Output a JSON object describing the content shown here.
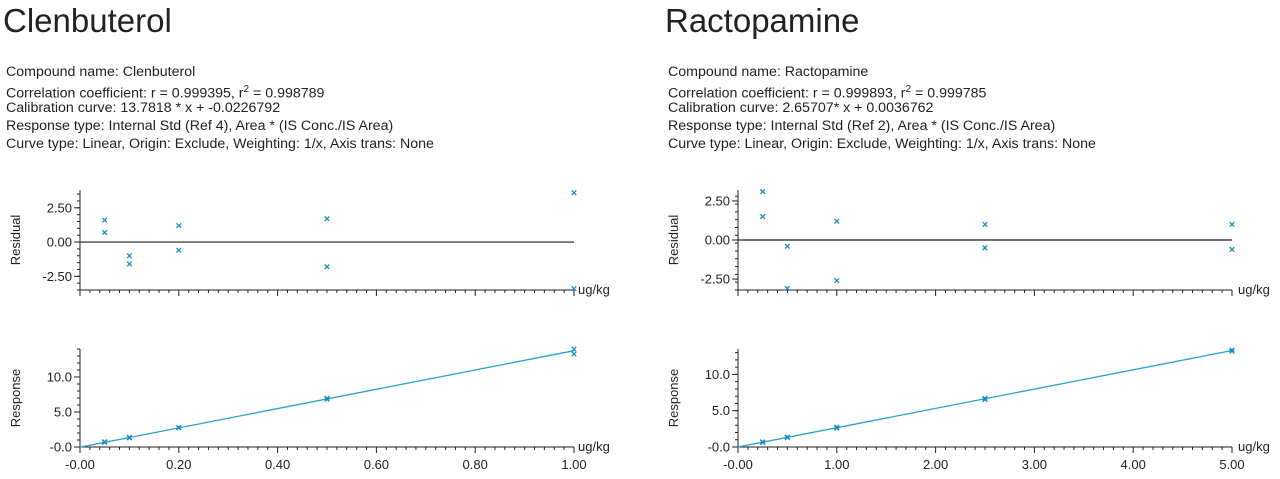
{
  "panels": [
    {
      "title": "Clenbuterol",
      "info": {
        "compound": "Compound name: Clenbuterol",
        "corr_prefix": "Correlation coefficient: r = 0.999395, r",
        "corr_sup": "2",
        "corr_suffix": " = 0.998789",
        "calibration": "Calibration curve: 13.7818 * x + -0.0226792",
        "response_type": "Response type: Internal Std (Ref 4), Area * (IS Conc./IS Area)",
        "curve_type": "Curve type: Linear, Origin: Exclude, Weighting: 1/x, Axis trans: None"
      }
    },
    {
      "title": "Ractopamine",
      "info": {
        "compound": "Compound name: Ractopamine",
        "corr_prefix": "Correlation coefficient: r = 0.999893, r",
        "corr_sup": "2",
        "corr_suffix": " = 0.999785",
        "calibration": "Calibration curve: 2.65707* x + 0.0036762",
        "response_type": "Response type: Internal Std (Ref 2), Area * (IS Conc./IS Area)",
        "curve_type": "Curve type: Linear, Origin: Exclude, Weighting: 1/x, Axis trans: None"
      }
    }
  ],
  "colors": {
    "marker": "#1a8fc4",
    "fit": "#2a9fd0",
    "axis": "#222222"
  },
  "chart_data": [
    {
      "type": "scatter",
      "title": "",
      "xlabel": "ug/kg",
      "ylabel": "Residual",
      "xlim": [
        0,
        1
      ],
      "ylim": [
        -3.5,
        3.8
      ],
      "yticks": [
        2.5,
        0,
        -2.5
      ],
      "ytick_labels": [
        "2.50",
        "0.00",
        "-2.50"
      ],
      "zero_line": true,
      "x": [
        0.05,
        0.05,
        0.1,
        0.1,
        0.2,
        0.2,
        0.5,
        0.5,
        1.0,
        1.0
      ],
      "y": [
        1.6,
        0.7,
        -1.0,
        -1.6,
        1.2,
        -0.6,
        1.7,
        -1.8,
        3.6,
        -3.4
      ]
    },
    {
      "type": "scatter",
      "title": "",
      "xlabel": "ug/kg",
      "ylabel": "Response",
      "xlim": [
        0,
        1
      ],
      "ylim": [
        0,
        14
      ],
      "yticks": [
        10,
        5,
        0
      ],
      "ytick_labels": [
        "10.0",
        "5.0",
        "-0.0"
      ],
      "xticks": [
        0,
        0.2,
        0.4,
        0.6,
        0.8,
        1.0
      ],
      "xtick_labels": [
        "-0.00",
        "0.20",
        "0.40",
        "0.60",
        "0.80",
        "1.00"
      ],
      "fit": {
        "slope": 13.7818,
        "intercept": -0.0226792
      },
      "x": [
        0.05,
        0.05,
        0.1,
        0.1,
        0.2,
        0.2,
        0.5,
        0.5,
        1.0,
        1.0
      ],
      "y": [
        0.75,
        0.66,
        1.39,
        1.31,
        2.79,
        2.73,
        6.96,
        6.82,
        13.98,
        13.28
      ]
    },
    {
      "type": "scatter",
      "title": "",
      "xlabel": "ug/kg",
      "ylabel": "Residual",
      "xlim": [
        0,
        5
      ],
      "ylim": [
        -3.2,
        3.2
      ],
      "yticks": [
        2.5,
        0,
        -2.5
      ],
      "ytick_labels": [
        "2.50",
        "0.00",
        "-2.50"
      ],
      "zero_line": true,
      "x": [
        0.25,
        0.25,
        0.5,
        0.5,
        1.0,
        1.0,
        2.5,
        2.5,
        5.0,
        5.0
      ],
      "y": [
        3.1,
        1.5,
        -0.4,
        -3.1,
        1.2,
        -2.6,
        1.0,
        -0.5,
        1.0,
        -0.6
      ]
    },
    {
      "type": "scatter",
      "title": "",
      "xlabel": "ug/kg",
      "ylabel": "Response",
      "xlim": [
        0,
        5
      ],
      "ylim": [
        0,
        13.5
      ],
      "yticks": [
        10,
        5,
        0
      ],
      "ytick_labels": [
        "10.0",
        "5.0",
        "-0.0"
      ],
      "xticks": [
        0,
        1,
        2,
        3,
        4,
        5
      ],
      "xtick_labels": [
        "-0.00",
        "1.00",
        "2.00",
        "3.00",
        "4.00",
        "5.00"
      ],
      "fit": {
        "slope": 2.65707,
        "intercept": 0.0036762
      },
      "x": [
        0.25,
        0.25,
        0.5,
        0.5,
        1.0,
        1.0,
        2.5,
        2.5,
        5.0,
        5.0
      ],
      "y": [
        0.71,
        0.62,
        1.38,
        1.29,
        2.73,
        2.61,
        6.71,
        6.54,
        13.35,
        13.2
      ]
    }
  ]
}
